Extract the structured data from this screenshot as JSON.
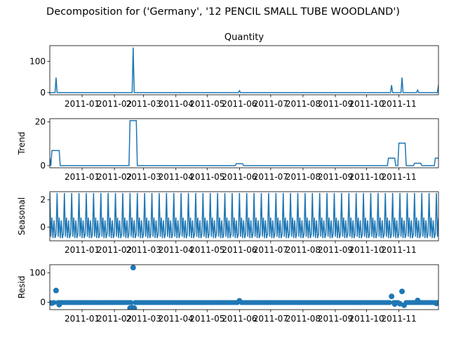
{
  "figure_title": "Decomposition for ('Germany', '12 PENCIL SMALL TUBE WOODLAND')",
  "chart_data": [
    {
      "type": "line",
      "title": "Quantity",
      "ylabel": "",
      "xlabel": "",
      "xlim": [
        "2010-12-01",
        "2011-12-09"
      ],
      "ylim": [
        -7,
        150
      ],
      "yticks": [
        0,
        100
      ],
      "xticks": [
        "2011-01",
        "2011-02",
        "2011-03",
        "2011-04",
        "2011-05",
        "2011-06",
        "2011-07",
        "2011-08",
        "2011-09",
        "2011-10",
        "2011-11"
      ],
      "x": [
        "2010-12-01",
        "2010-12-06",
        "2010-12-07",
        "2010-12-08",
        "2011-02-18",
        "2011-02-19",
        "2011-02-20",
        "2011-05-31",
        "2011-06-01",
        "2011-06-02",
        "2011-10-24",
        "2011-10-25",
        "2011-10-26",
        "2011-11-03",
        "2011-11-04",
        "2011-11-05",
        "2011-11-18",
        "2011-11-19",
        "2011-11-20",
        "2011-12-08",
        "2011-12-09"
      ],
      "values": [
        0,
        0,
        48,
        0,
        0,
        144,
        0,
        0,
        6,
        0,
        0,
        24,
        0,
        0,
        48,
        0,
        0,
        8,
        0,
        0,
        24
      ]
    },
    {
      "type": "line",
      "title": "",
      "ylabel": "Trend",
      "xlabel": "",
      "xlim": [
        "2010-12-01",
        "2011-12-09"
      ],
      "ylim": [
        -1,
        21.5
      ],
      "yticks": [
        0,
        20
      ],
      "xticks": [
        "2011-01",
        "2011-02",
        "2011-03",
        "2011-04",
        "2011-05",
        "2011-06",
        "2011-07",
        "2011-08",
        "2011-09",
        "2011-10",
        "2011-11"
      ],
      "x": [
        "2010-12-01",
        "2010-12-02",
        "2010-12-03",
        "2010-12-04",
        "2010-12-10",
        "2010-12-11",
        "2011-02-15",
        "2011-02-16",
        "2011-02-22",
        "2011-02-23",
        "2011-05-28",
        "2011-05-29",
        "2011-06-04",
        "2011-06-05",
        "2011-10-21",
        "2011-10-22",
        "2011-10-28",
        "2011-10-29",
        "2011-10-31",
        "2011-11-01",
        "2011-11-07",
        "2011-11-08",
        "2011-11-15",
        "2011-11-16",
        "2011-11-22",
        "2011-11-23",
        "2011-12-05",
        "2011-12-06",
        "2011-12-09"
      ],
      "values": [
        3.4,
        0,
        6.9,
        6.9,
        6.9,
        0,
        0,
        20.6,
        20.6,
        0,
        0,
        0.9,
        0.9,
        0,
        0,
        3.4,
        3.4,
        0,
        0,
        10.3,
        10.3,
        0,
        0,
        1.1,
        1.1,
        0,
        0,
        3.4,
        3.4
      ]
    },
    {
      "type": "line",
      "title": "",
      "ylabel": "Seasonal",
      "xlabel": "",
      "xlim": [
        "2010-12-01",
        "2011-12-09"
      ],
      "ylim": [
        -1.0,
        2.6
      ],
      "yticks": [
        0,
        2
      ],
      "xticks": [
        "2011-01",
        "2011-02",
        "2011-03",
        "2011-04",
        "2011-05",
        "2011-06",
        "2011-07",
        "2011-08",
        "2011-09",
        "2011-10",
        "2011-11"
      ],
      "period_days": 7,
      "weekly_pattern": [
        2.5,
        -0.7,
        0.7,
        -0.8,
        0.5,
        -0.8,
        -0.5
      ]
    },
    {
      "type": "scatter",
      "title": "",
      "ylabel": "Resid",
      "xlabel": "",
      "xlim": [
        "2010-12-01",
        "2011-12-09"
      ],
      "ylim": [
        -25,
        128
      ],
      "yticks": [
        0,
        100
      ],
      "xticks": [
        "2011-01",
        "2011-02",
        "2011-03",
        "2011-04",
        "2011-05",
        "2011-06",
        "2011-07",
        "2011-08",
        "2011-09",
        "2011-10",
        "2011-11"
      ],
      "baseline": -1,
      "outliers": [
        {
          "x": "2010-12-03",
          "y": -3
        },
        {
          "x": "2010-12-07",
          "y": 40
        },
        {
          "x": "2010-12-10",
          "y": -8
        },
        {
          "x": "2011-02-16",
          "y": -20
        },
        {
          "x": "2011-02-18",
          "y": -18
        },
        {
          "x": "2011-02-19",
          "y": 118
        },
        {
          "x": "2011-02-20",
          "y": -20
        },
        {
          "x": "2011-06-01",
          "y": 5
        },
        {
          "x": "2011-10-25",
          "y": 20
        },
        {
          "x": "2011-10-28",
          "y": -6
        },
        {
          "x": "2011-11-02",
          "y": -5
        },
        {
          "x": "2011-11-04",
          "y": 37
        },
        {
          "x": "2011-11-06",
          "y": -10
        },
        {
          "x": "2011-11-19",
          "y": 6
        },
        {
          "x": "2011-12-07",
          "y": -4
        }
      ]
    }
  ]
}
